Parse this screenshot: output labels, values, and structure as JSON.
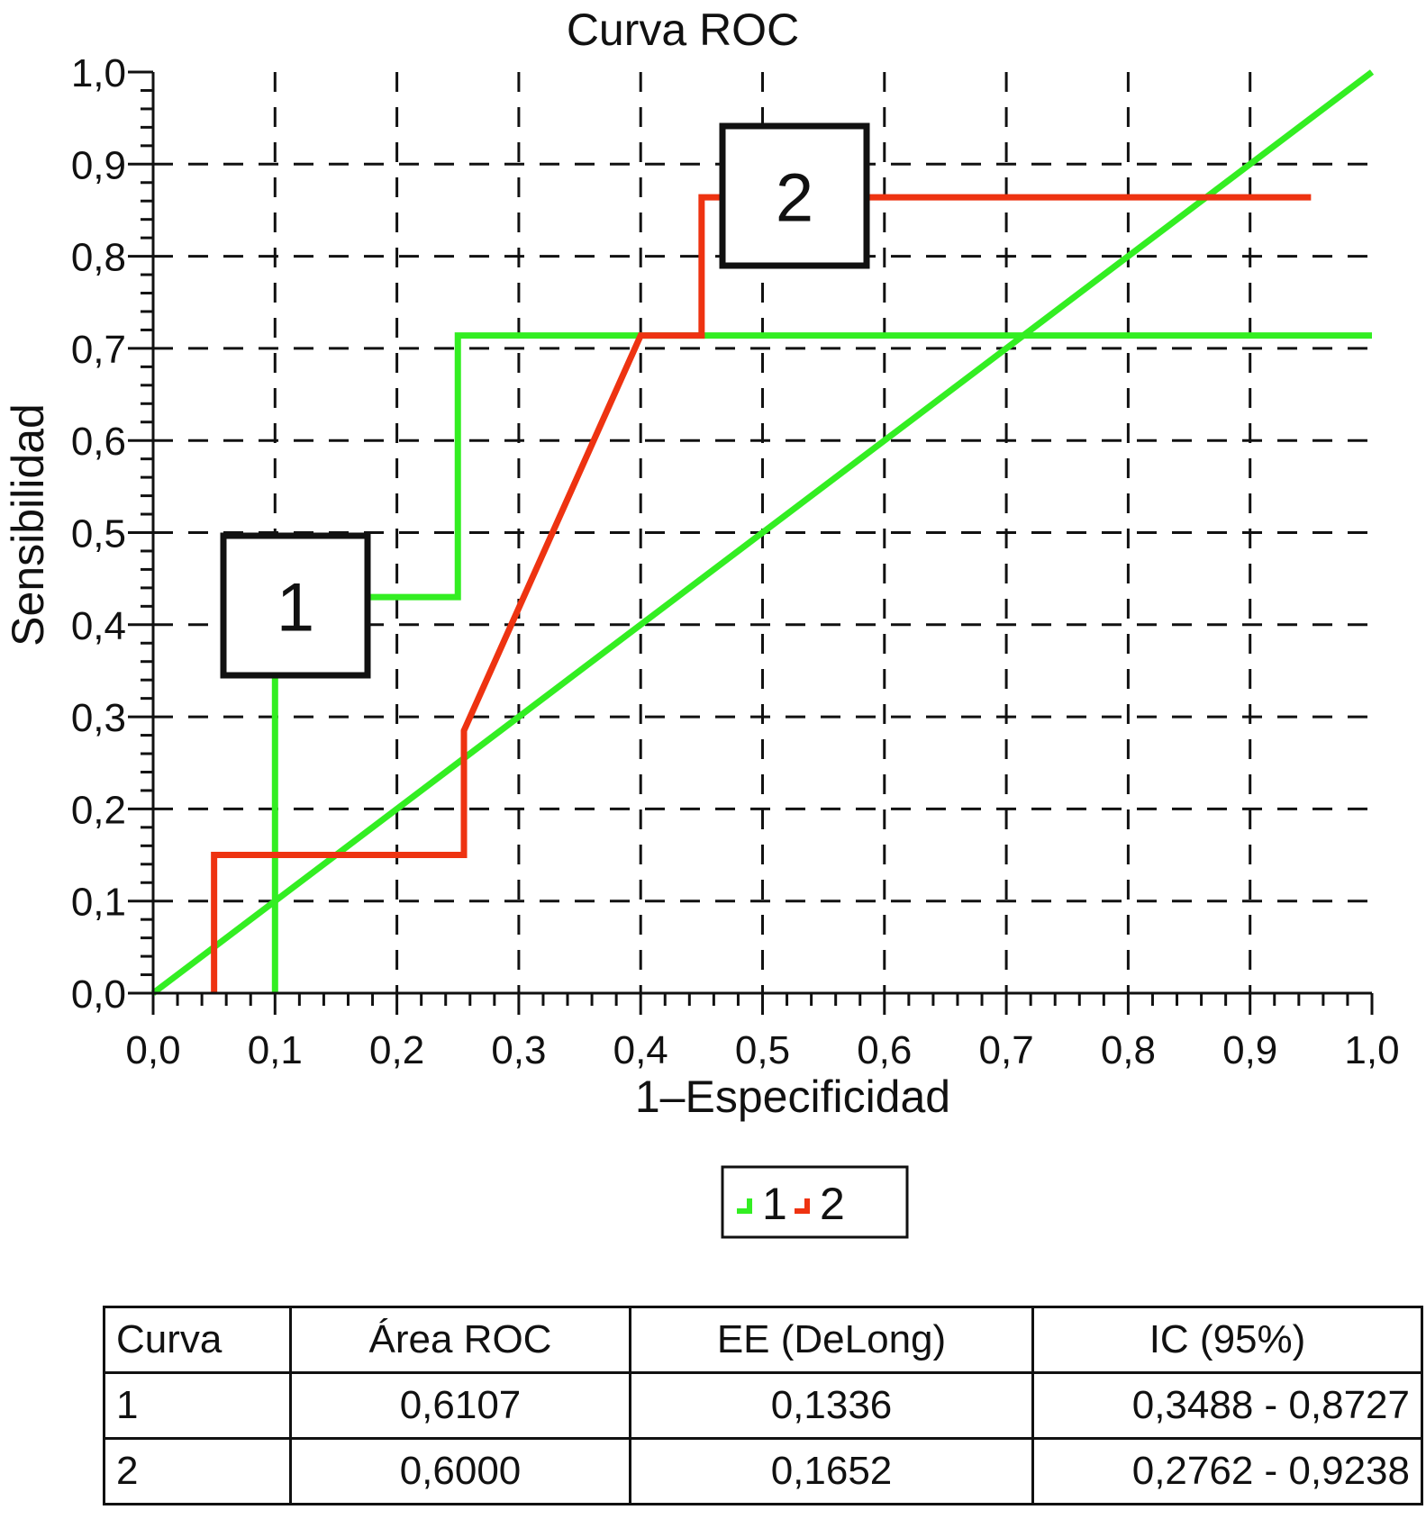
{
  "chart_data": {
    "type": "line",
    "title": "Curva ROC",
    "xlabel": "1–Especificidad",
    "ylabel": "Sensibilidad",
    "xlim": [
      0,
      1
    ],
    "ylim": [
      0,
      1
    ],
    "x_ticks": [
      "0,0",
      "0,1",
      "0,2",
      "0,3",
      "0,4",
      "0,5",
      "0,6",
      "0,7",
      "0,8",
      "0,9",
      "1,0"
    ],
    "y_ticks": [
      "0,0",
      "0,1",
      "0,2",
      "0,3",
      "0,4",
      "0,5",
      "0,6",
      "0,7",
      "0,8",
      "0,9",
      "1,0"
    ],
    "grid": true,
    "grid_style": "dashed",
    "legend_position": "bottom-center",
    "series": [
      {
        "name": "1",
        "color": "#33ee22",
        "label_box_text": "1",
        "points": [
          [
            0.1,
            0.0
          ],
          [
            0.1,
            0.43
          ],
          [
            0.25,
            0.43
          ],
          [
            0.25,
            0.714
          ],
          [
            1.0,
            0.714
          ]
        ]
      },
      {
        "name": "2",
        "color": "#ee3311",
        "label_box_text": "2",
        "points": [
          [
            0.05,
            0.0
          ],
          [
            0.05,
            0.15
          ],
          [
            0.255,
            0.15
          ],
          [
            0.255,
            0.285
          ],
          [
            0.4,
            0.714
          ],
          [
            0.45,
            0.714
          ],
          [
            0.45,
            0.864
          ],
          [
            0.95,
            0.864
          ]
        ]
      }
    ],
    "reference_line": {
      "color": "#33ee22",
      "points": [
        [
          0,
          0
        ],
        [
          1,
          1
        ]
      ]
    }
  },
  "legend": {
    "items": [
      {
        "label": "1",
        "color": "#33ee22"
      },
      {
        "label": "2",
        "color": "#ee3311"
      }
    ]
  },
  "table": {
    "headers": [
      "Curva",
      "Área ROC",
      "EE (DeLong)",
      "IC (95%)"
    ],
    "rows": [
      [
        "1",
        "0,6107",
        "0,1336",
        "0,3488 - 0,8727"
      ],
      [
        "2",
        "0,6000",
        "0,1652",
        "0,2762 - 0,9238"
      ]
    ]
  }
}
